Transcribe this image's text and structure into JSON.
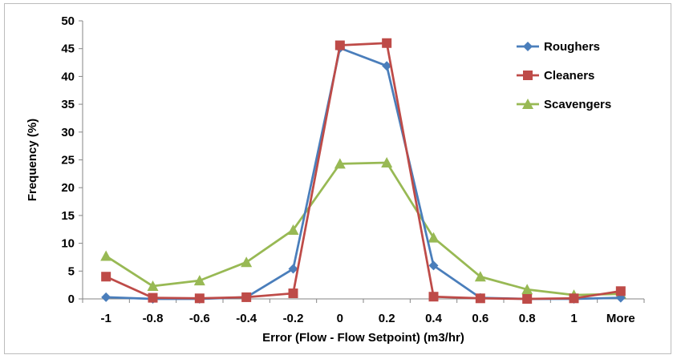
{
  "chart_data": {
    "type": "line",
    "title": "",
    "xlabel": "Error (Flow - Flow Setpoint) (m3/hr)",
    "ylabel": "Frequency (%)",
    "ylim": [
      0,
      50
    ],
    "yticks": [
      0,
      5,
      10,
      15,
      20,
      25,
      30,
      35,
      40,
      45,
      50
    ],
    "categories": [
      "-1",
      "-0.8",
      "-0.6",
      "-0.4",
      "-0.2",
      "0",
      "0.2",
      "0.4",
      "0.6",
      "0.8",
      "1",
      "More"
    ],
    "grid": false,
    "legend_position": "top-right",
    "series": [
      {
        "name": "Roughers",
        "color": "#4a7ebb",
        "marker": "diamond",
        "values": [
          0.3,
          0.0,
          0.0,
          0.3,
          5.4,
          45.1,
          41.9,
          6.0,
          0.2,
          0.0,
          0.0,
          0.2
        ]
      },
      {
        "name": "Cleaners",
        "color": "#be4b48",
        "marker": "square",
        "values": [
          4.0,
          0.2,
          0.1,
          0.3,
          1.0,
          45.6,
          46.0,
          0.4,
          0.1,
          0.0,
          0.1,
          1.4
        ]
      },
      {
        "name": "Scavengers",
        "color": "#98b954",
        "marker": "triangle",
        "values": [
          7.7,
          2.3,
          3.3,
          6.6,
          12.4,
          24.3,
          24.5,
          11.0,
          4.0,
          1.7,
          0.7,
          0.9
        ]
      }
    ]
  }
}
